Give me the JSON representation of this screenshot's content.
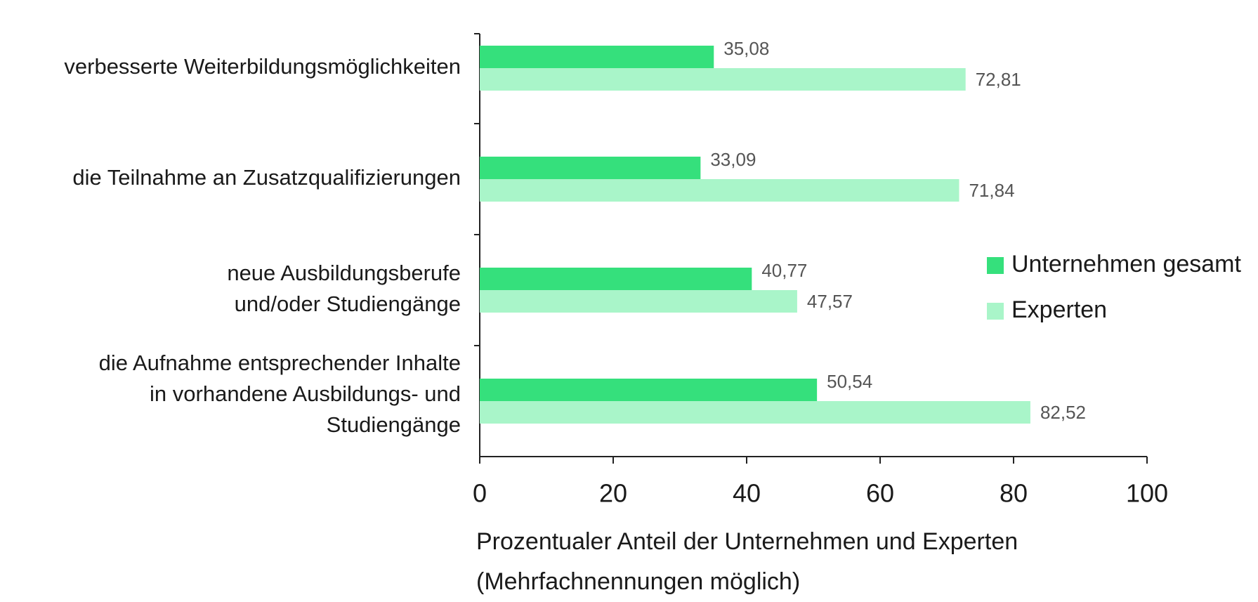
{
  "chart_data": {
    "type": "bar",
    "orientation": "horizontal",
    "categories": [
      [
        "verbesserte Weiterbildungsmöglichkeiten"
      ],
      [
        "die Teilnahme an Zusatzqualifizierungen"
      ],
      [
        "neue Ausbildungsberufe",
        "und/oder Studiengänge"
      ],
      [
        "die Aufnahme entsprechender Inhalte",
        "in vorhandene Ausbildungs- und",
        "Studiengänge"
      ]
    ],
    "series": [
      {
        "name": "Unternehmen gesamt",
        "color": "#35e07c",
        "values": [
          35.08,
          33.09,
          40.77,
          50.54
        ],
        "value_labels": [
          "35,08",
          "33,09",
          "40,77",
          "50,54"
        ]
      },
      {
        "name": "Experten",
        "color": "#a9f5c9",
        "values": [
          72.81,
          71.84,
          47.57,
          82.52
        ],
        "value_labels": [
          "72,81",
          "71,84",
          "47,57",
          "82,52"
        ]
      }
    ],
    "xlim": [
      0,
      100
    ],
    "xticks": [
      0,
      20,
      40,
      60,
      80,
      100
    ],
    "xlabel": [
      "Prozentualer Anteil der Unternehmen und Experten",
      "(Mehrfachnennungen möglich)"
    ],
    "legend": "right"
  }
}
